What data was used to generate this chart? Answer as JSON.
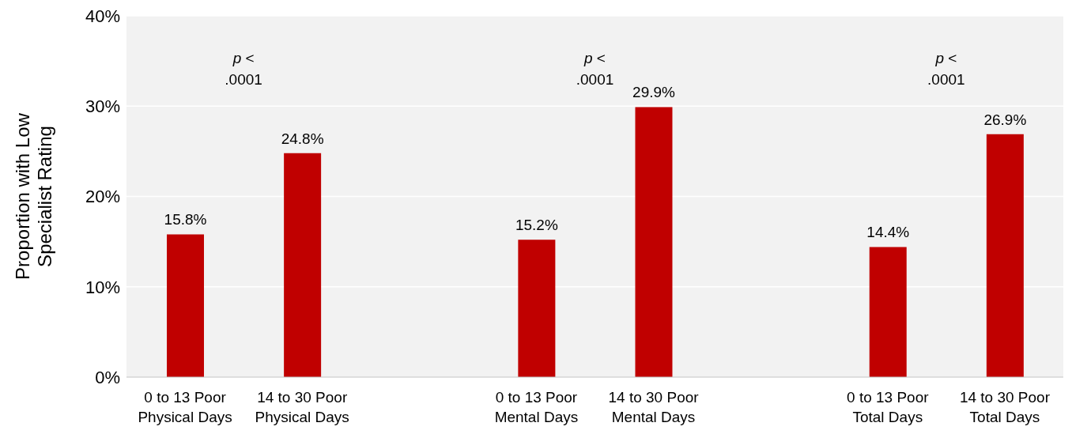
{
  "chart_data": {
    "type": "bar",
    "ylabel": "Proportion with Low Specialist Rating",
    "categories": [
      "0 to 13 Poor Physical Days",
      "14 to 30 Poor Physical Days",
      null,
      "0 to 13 Poor Mental Days",
      "14 to 30 Poor Mental Days",
      null,
      "0 to 13 Poor Total Days",
      "14 to 30 Poor Total Days"
    ],
    "values": [
      15.8,
      24.8,
      null,
      15.2,
      29.9,
      null,
      14.4,
      26.9
    ],
    "value_labels": [
      "15.8%",
      "24.8%",
      null,
      "15.2%",
      "29.9%",
      null,
      "14.4%",
      "26.9%"
    ],
    "color": "#c00000",
    "ylim": [
      0,
      40
    ],
    "yticks": [
      {
        "value": 0,
        "label": "0%"
      },
      {
        "value": 10,
        "label": "10%"
      },
      {
        "value": 20,
        "label": "20%"
      },
      {
        "value": 30,
        "label": "30%"
      },
      {
        "value": 40,
        "label": "40%"
      }
    ],
    "grid": "y",
    "annotations": [
      "p < .0001",
      "p < .0001",
      "p < .0001"
    ]
  }
}
